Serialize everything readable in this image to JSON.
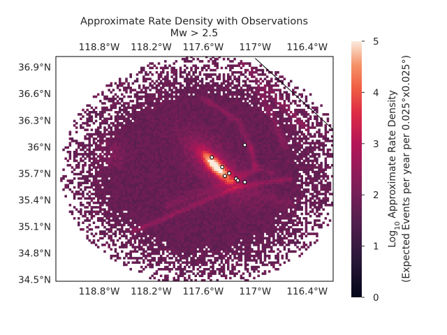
{
  "chart_data": {
    "type": "heatmap",
    "title": "Approximate Rate Density with Observations",
    "subtitle": "Mw > 2.5",
    "x_tick_labels": [
      "118.8°W",
      "118.2°W",
      "117.6°W",
      "117°W",
      "116.4°W"
    ],
    "x_ticks": [
      -118.8,
      -118.2,
      -117.6,
      -117.0,
      -116.4
    ],
    "y_tick_labels": [
      "36.9°N",
      "36.6°N",
      "36.3°N",
      "36°N",
      "35.7°N",
      "35.4°N",
      "35.1°N",
      "34.8°N",
      "34.5°N"
    ],
    "y_ticks": [
      36.9,
      36.6,
      36.3,
      36.0,
      35.7,
      35.4,
      35.1,
      34.8,
      34.5
    ],
    "xlim": [
      -119.3,
      -116.1
    ],
    "ylim": [
      34.48,
      37.02
    ],
    "colorbar": {
      "label_line1": "Log",
      "label_sub": "10",
      "label_line1_rest": " Approximate Rate Density",
      "label_line2": "(Expected Events per year per 0.025°x0.025°)",
      "ticks": [
        0,
        1,
        2,
        3,
        4,
        5
      ],
      "tick_labels": [
        "0",
        "1",
        "2",
        "3",
        "4",
        "5"
      ],
      "range": [
        0,
        5
      ]
    },
    "observations": [
      {
        "lon": -117.12,
        "lat": 36.02
      },
      {
        "lon": -117.5,
        "lat": 35.88
      },
      {
        "lon": -117.38,
        "lat": 35.77
      },
      {
        "lon": -117.3,
        "lat": 35.7
      },
      {
        "lon": -117.35,
        "lat": 35.67
      },
      {
        "lon": -117.22,
        "lat": 35.64
      },
      {
        "lon": -117.2,
        "lat": 35.62
      },
      {
        "lon": -117.12,
        "lat": 35.6
      }
    ],
    "background_level": 1.8,
    "hotspot_peak": 4.6
  }
}
